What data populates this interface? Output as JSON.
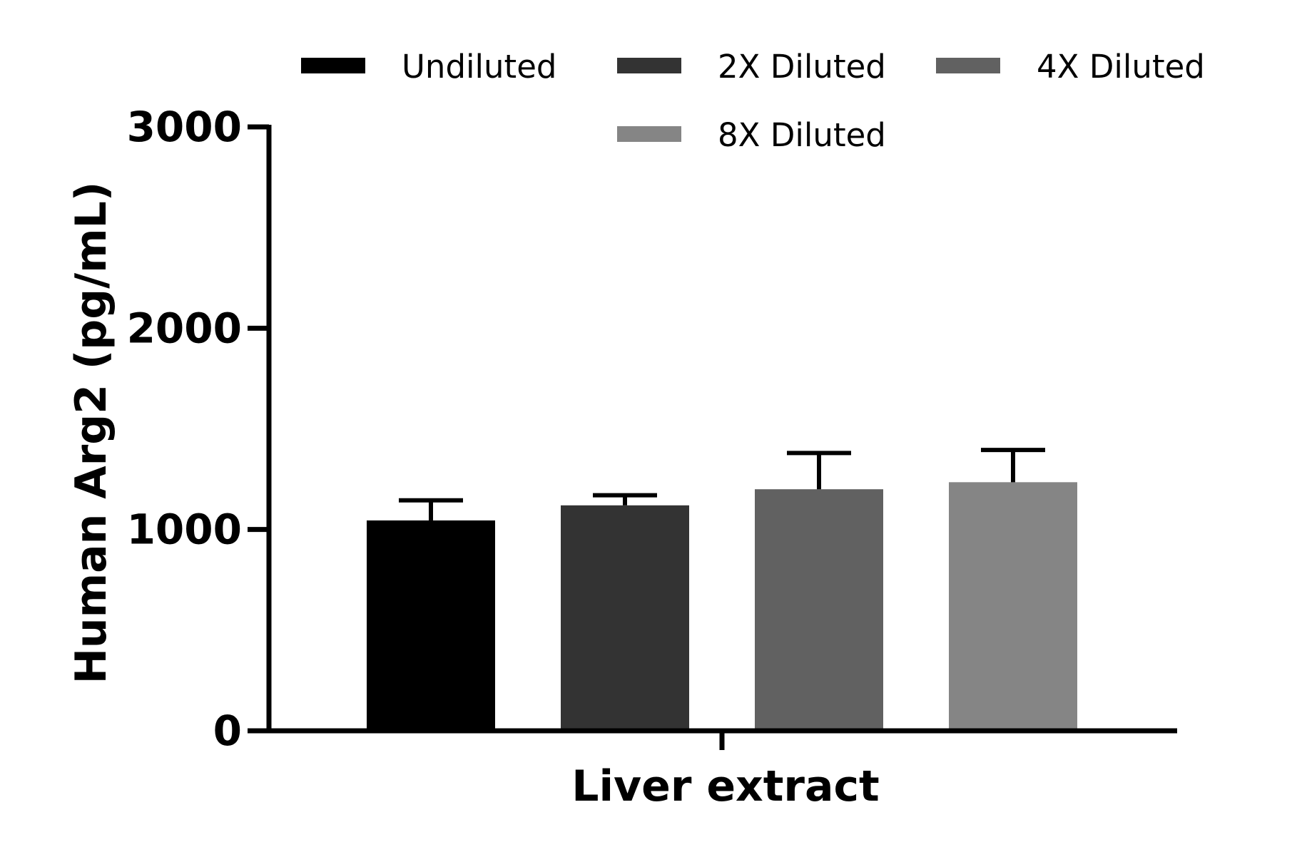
{
  "chart_data": {
    "type": "bar",
    "title": "",
    "xlabel": "Liver extract",
    "ylabel": "Human Arg2 (pg/mL)",
    "ylim": [
      0,
      3000
    ],
    "yticks": [
      0,
      1000,
      2000,
      3000
    ],
    "ytick_labels": [
      "0",
      "1000",
      "2000",
      "3000"
    ],
    "categories": [
      "Liver extract"
    ],
    "series": [
      {
        "name": "Undiluted",
        "values": [
          1045
        ],
        "error": [
          100
        ],
        "color": "#000000"
      },
      {
        "name": "2X Diluted",
        "values": [
          1120
        ],
        "error": [
          50
        ],
        "color": "#333333"
      },
      {
        "name": "4X Diluted",
        "values": [
          1200
        ],
        "error": [
          180
        ],
        "color": "#616161"
      },
      {
        "name": "8X Diluted",
        "values": [
          1235
        ],
        "error": [
          160
        ],
        "color": "#858585"
      }
    ],
    "error_bars": "upper",
    "legend_position": "top",
    "grid": false
  }
}
